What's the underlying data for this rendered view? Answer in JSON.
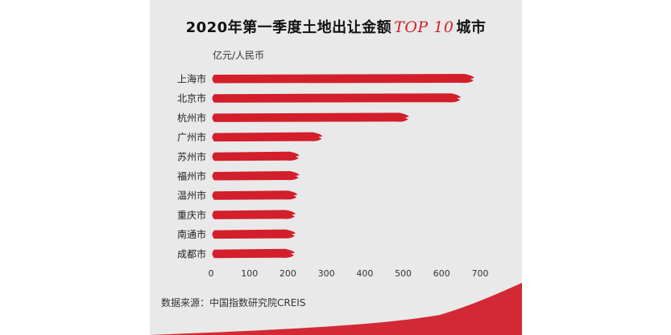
{
  "title": {
    "prefix": "2020年第一季度土地出让金额",
    "accent": "TOP 10",
    "suffix": "城市"
  },
  "unit_label": "亿元/人民币",
  "source": "数据来源：中国指数研究院CREIS",
  "colors": {
    "bar": "#d21f2b",
    "background": "#e9e9e9",
    "title_accent": "#d21f2b"
  },
  "chart_data": {
    "type": "bar",
    "orientation": "horizontal",
    "categories": [
      "上海市",
      "北京市",
      "杭州市",
      "广州市",
      "苏州市",
      "福州市",
      "温州市",
      "重庆市",
      "南通市",
      "成都市"
    ],
    "values": [
      685,
      650,
      515,
      290,
      230,
      230,
      225,
      220,
      220,
      218
    ],
    "xlim": [
      0,
      700
    ],
    "xticks": [
      0,
      100,
      200,
      300,
      400,
      500,
      600,
      700
    ],
    "ylabel": "亿元/人民币",
    "grid": false,
    "legend": "none"
  }
}
